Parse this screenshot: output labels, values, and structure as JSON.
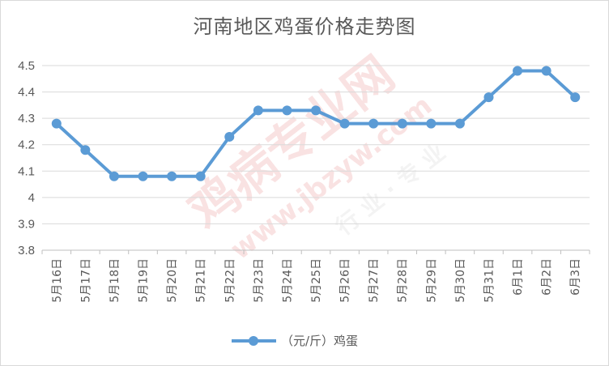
{
  "chart_data": {
    "type": "line",
    "title": "河南地区鸡蛋价格走势图",
    "xlabel": "",
    "ylabel": "",
    "categories": [
      "5月16日",
      "5月17日",
      "5月18日",
      "5月19日",
      "5月20日",
      "5月21日",
      "5月22日",
      "5月23日",
      "5月24日",
      "5月25日",
      "5月26日",
      "5月27日",
      "5月28日",
      "5月29日",
      "5月30日",
      "5月31日",
      "6月1日",
      "6月2日",
      "6月3日"
    ],
    "series": [
      {
        "name": "（元/斤）鸡蛋",
        "values": [
          4.28,
          4.18,
          4.08,
          4.08,
          4.08,
          4.08,
          4.23,
          4.33,
          4.33,
          4.33,
          4.28,
          4.28,
          4.28,
          4.28,
          4.28,
          4.38,
          4.48,
          4.48,
          4.38
        ],
        "color": "#5b9bd5"
      }
    ],
    "ylim": [
      3.8,
      4.5
    ],
    "yticks": [
      "4.5",
      "4.4",
      "4.3",
      "4.2",
      "4.1",
      "4",
      "3.9",
      "3.8"
    ],
    "grid": true,
    "legend": "bottom-center"
  },
  "watermark": {
    "line1": "鸡病专业网",
    "line2": "www.jbzyw.com",
    "line3": "行 业 · 专 业"
  }
}
